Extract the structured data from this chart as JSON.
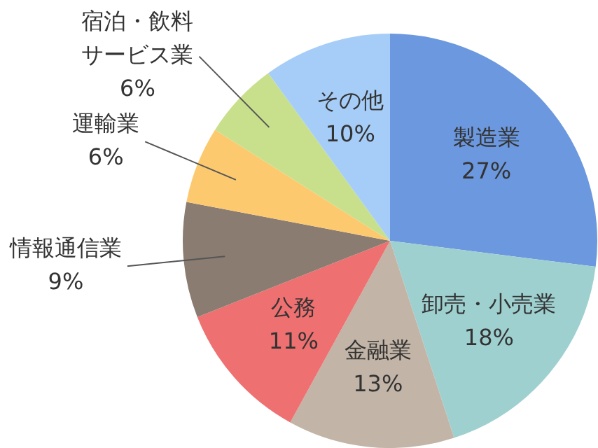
{
  "chart_data": {
    "type": "pie",
    "categories": [
      "製造業",
      "卸売・小売業",
      "金融業",
      "公務",
      "情報通信業",
      "運輸業",
      "宿泊・飲料サービス業",
      "その他"
    ],
    "values": [
      27,
      18,
      13,
      11,
      9,
      6,
      6,
      10
    ],
    "colors": [
      "#6b98de",
      "#9fd0d0",
      "#c2b4a6",
      "#ef7070",
      "#8a7c70",
      "#fdc96f",
      "#c8e08c",
      "#a6cdf8"
    ],
    "value_labels": [
      "27%",
      "18%",
      "13%",
      "11%",
      "9%",
      "6%",
      "6%",
      "10%"
    ],
    "legend": false
  }
}
